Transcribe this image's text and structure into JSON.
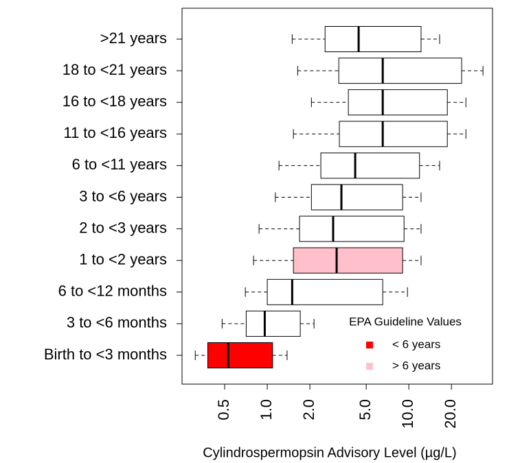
{
  "chart_data": {
    "type": "boxplot",
    "xlabel": "Cylindrospermopsin Advisory Level (µg/L)",
    "xscale": "log",
    "xlim": [
      0.25,
      39
    ],
    "xticks": [
      0.5,
      {
        "value": 1,
        "label": "1.0"
      },
      {
        "value": 2,
        "label": "2.0"
      },
      {
        "value": 5,
        "label": "5.0"
      },
      {
        "value": 10,
        "label": "10.0"
      },
      {
        "value": 20,
        "label": "20.0"
      }
    ],
    "categories": [
      ">21 years",
      "18 to <21 years",
      "16 to <18 years",
      "11 to <16 years",
      "6 to <11 years",
      "3 to <6 years",
      "2 to <3 years",
      "1 to <2 years",
      "6 to <12 months",
      "3 to <6 months",
      "Birth to <3 months"
    ],
    "boxes": [
      {
        "min": 1.5,
        "q1": 2.56,
        "median": 4.42,
        "q3": 12.2,
        "max": 16.5,
        "fill": "#ffffff"
      },
      {
        "min": 1.64,
        "q1": 3.2,
        "median": 6.54,
        "q3": 23.6,
        "max": 33.4,
        "fill": "#ffffff"
      },
      {
        "min": 2.05,
        "q1": 3.74,
        "median": 6.54,
        "q3": 18.7,
        "max": 25.3,
        "fill": "#ffffff"
      },
      {
        "min": 1.53,
        "q1": 3.23,
        "median": 6.54,
        "q3": 18.7,
        "max": 25.3,
        "fill": "#ffffff"
      },
      {
        "min": 1.21,
        "q1": 2.39,
        "median": 4.18,
        "q3": 11.9,
        "max": 16.5,
        "fill": "#ffffff"
      },
      {
        "min": 1.14,
        "q1": 2.05,
        "median": 3.34,
        "q3": 9.04,
        "max": 12.2,
        "fill": "#ffffff"
      },
      {
        "min": 0.875,
        "q1": 1.69,
        "median": 2.92,
        "q3": 9.25,
        "max": 12.2,
        "fill": "#ffffff"
      },
      {
        "min": 0.8,
        "q1": 1.53,
        "median": 3.09,
        "q3": 9.04,
        "max": 12.2,
        "fill": "#ffc0cb"
      },
      {
        "min": 0.7,
        "q1": 1.0,
        "median": 1.5,
        "q3": 6.54,
        "max": 9.78,
        "fill": "#ffffff"
      },
      {
        "min": 0.48,
        "q1": 0.71,
        "median": 0.96,
        "q3": 1.71,
        "max": 2.14,
        "fill": "#ffffff"
      },
      {
        "min": 0.31,
        "q1": 0.38,
        "median": 0.53,
        "q3": 1.09,
        "max": 1.38,
        "fill": "#ff0000"
      }
    ],
    "legend": {
      "title": "EPA Guideline Values",
      "entries": [
        {
          "name": "< 6 years",
          "color": "#ff0000"
        },
        {
          "name": "> 6 years",
          "color": "#ffc0cb"
        }
      ]
    }
  }
}
